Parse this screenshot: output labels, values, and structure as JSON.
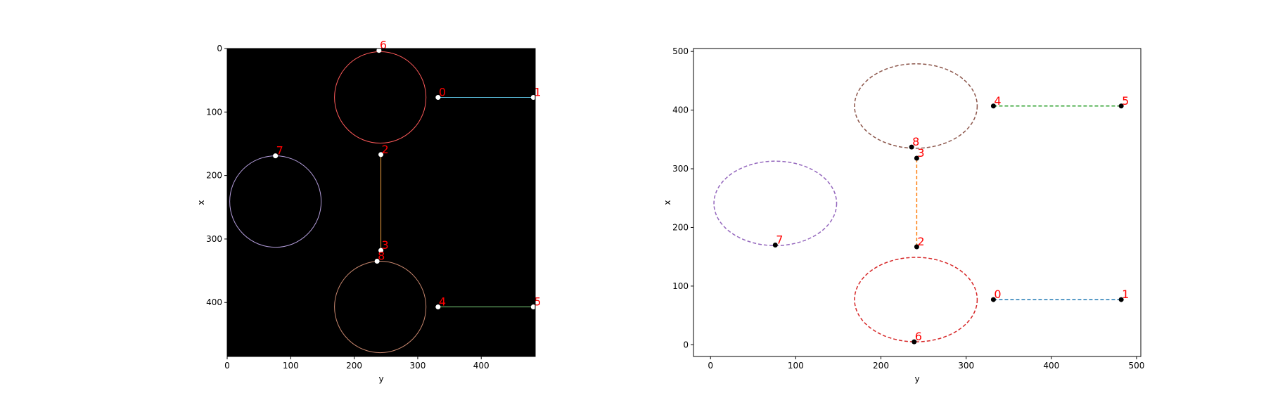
{
  "chart_data": [
    {
      "type": "scatter",
      "panel": "image-overlay",
      "background": "#000000",
      "xlabel": "y",
      "ylabel": "x",
      "xlim": [
        0,
        485
      ],
      "ylim": [
        485,
        0
      ],
      "x_ticks": [
        0,
        100,
        200,
        300,
        400
      ],
      "y_ticks": [
        0,
        100,
        200,
        300,
        400
      ],
      "point_color": "#ffffff",
      "label_color": "#ff0000",
      "points": [
        {
          "label": "0",
          "x": 332,
          "y": 77
        },
        {
          "label": "1",
          "x": 482,
          "y": 77
        },
        {
          "label": "2",
          "x": 242,
          "y": 167
        },
        {
          "label": "3",
          "x": 242,
          "y": 318
        },
        {
          "label": "4",
          "x": 332,
          "y": 407
        },
        {
          "label": "5",
          "x": 482,
          "y": 407
        },
        {
          "label": "6",
          "x": 239,
          "y": 3
        },
        {
          "label": "7",
          "x": 76,
          "y": 169
        },
        {
          "label": "8",
          "x": 236,
          "y": 335
        }
      ],
      "segments": [
        {
          "from": [
            332,
            77
          ],
          "to": [
            482,
            77
          ],
          "color": "#5fc7e8"
        },
        {
          "from": [
            242,
            167
          ],
          "to": [
            242,
            318
          ],
          "color": "#f0a040"
        },
        {
          "from": [
            332,
            407
          ],
          "to": [
            482,
            407
          ],
          "color": "#7fd67f"
        }
      ],
      "circles": [
        {
          "cx": 241,
          "cy": 77,
          "r": 72,
          "color": "#ff5a5a"
        },
        {
          "cx": 76,
          "cy": 241,
          "r": 72,
          "color": "#b39ddb"
        },
        {
          "cx": 241,
          "cy": 407,
          "r": 72,
          "color": "#c8876e"
        }
      ]
    },
    {
      "type": "scatter",
      "panel": "plot",
      "background": "#ffffff",
      "xlabel": "y",
      "ylabel": "x",
      "xlim": [
        -20,
        505
      ],
      "ylim": [
        -20,
        505
      ],
      "x_ticks": [
        0,
        100,
        200,
        300,
        400,
        500
      ],
      "y_ticks": [
        0,
        100,
        200,
        300,
        400,
        500
      ],
      "point_color": "#000000",
      "label_color": "#ff0000",
      "points": [
        {
          "label": "0",
          "x": 332,
          "y": 77
        },
        {
          "label": "1",
          "x": 482,
          "y": 77
        },
        {
          "label": "2",
          "x": 242,
          "y": 167
        },
        {
          "label": "3",
          "x": 242,
          "y": 318
        },
        {
          "label": "4",
          "x": 332,
          "y": 407
        },
        {
          "label": "5",
          "x": 482,
          "y": 407
        },
        {
          "label": "6",
          "x": 239,
          "y": 5
        },
        {
          "label": "7",
          "x": 76,
          "y": 170
        },
        {
          "label": "8",
          "x": 236,
          "y": 337
        }
      ],
      "segments": [
        {
          "from": [
            332,
            77
          ],
          "to": [
            482,
            77
          ],
          "color": "#1f77b4"
        },
        {
          "from": [
            242,
            167
          ],
          "to": [
            242,
            318
          ],
          "color": "#ff7f0e"
        },
        {
          "from": [
            332,
            407
          ],
          "to": [
            482,
            407
          ],
          "color": "#2ca02c"
        }
      ],
      "circles": [
        {
          "cx": 241,
          "cy": 77,
          "r": 72,
          "color": "#d62728"
        },
        {
          "cx": 76,
          "cy": 241,
          "r": 72,
          "color": "#9467bd"
        },
        {
          "cx": 241,
          "cy": 407,
          "r": 72,
          "color": "#8c564b"
        }
      ]
    }
  ]
}
